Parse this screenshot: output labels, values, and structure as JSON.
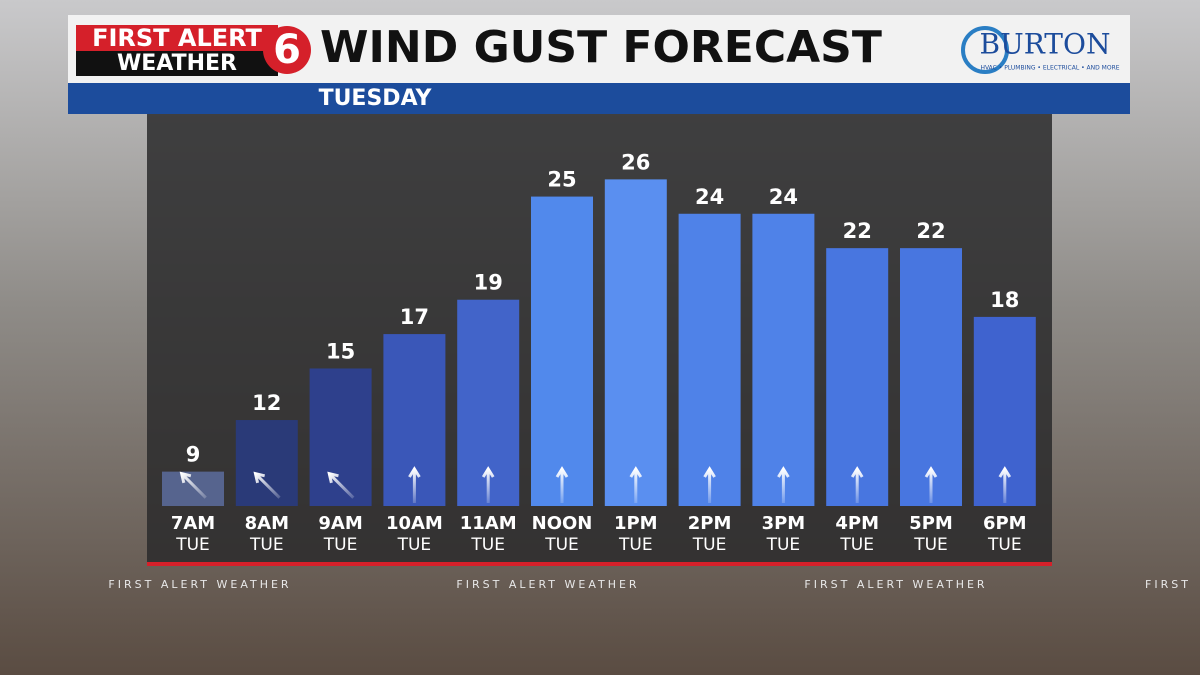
{
  "chart_data": {
    "type": "bar",
    "brand_top": "FIRST ALERT",
    "brand_bottom": "WEATHER",
    "channel": "6",
    "title": "WIND GUST FORECAST",
    "subtitle": "TUESDAY",
    "sponsor": "BURTON",
    "sponsor_tagline": "HVAC • PLUMBING • ELECTRICAL • AND MORE",
    "footer": "FIRST ALERT WEATHER",
    "footer_cut": "FIRST",
    "categories": [
      "7AM",
      "8AM",
      "9AM",
      "10AM",
      "11AM",
      "NOON",
      "1PM",
      "2PM",
      "3PM",
      "4PM",
      "5PM",
      "6PM"
    ],
    "category_days": [
      "TUE",
      "TUE",
      "TUE",
      "TUE",
      "TUE",
      "TUE",
      "TUE",
      "TUE",
      "TUE",
      "TUE",
      "TUE",
      "TUE"
    ],
    "values": [
      9,
      12,
      15,
      17,
      19,
      25,
      26,
      24,
      24,
      22,
      22,
      18
    ],
    "colors": [
      "#56648e",
      "#2a3a78",
      "#2e408c",
      "#3a57b8",
      "#4264c9",
      "#5189ec",
      "#5a8ff0",
      "#4f82e8",
      "#4f82e8",
      "#4876e0",
      "#4876e0",
      "#3f63cf"
    ],
    "arrow_angles": [
      -45,
      -45,
      -45,
      0,
      0,
      0,
      0,
      0,
      0,
      0,
      0,
      0
    ],
    "ylim": [
      7,
      28
    ]
  }
}
